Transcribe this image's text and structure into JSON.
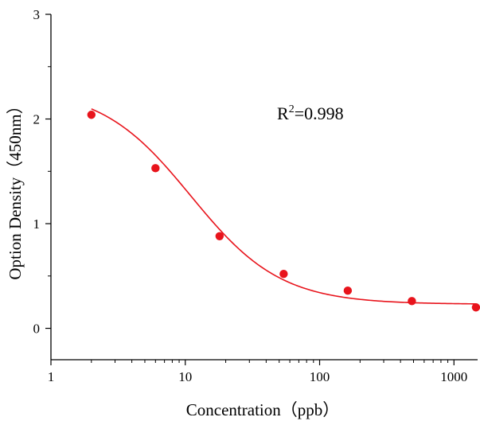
{
  "chart_data": {
    "type": "scatter",
    "title": "",
    "xlabel": "Concentration（ppb）",
    "ylabel": "Option Density（450nm）",
    "x_scale": "log",
    "xlim": [
      1,
      1500
    ],
    "ylim": [
      -0.3,
      3
    ],
    "x_ticks": [
      1,
      10,
      100,
      1000
    ],
    "x_tick_labels": [
      "1",
      "10",
      "100",
      "1000"
    ],
    "y_ticks": [
      0,
      1,
      2,
      3
    ],
    "y_tick_labels": [
      "0",
      "1",
      "2",
      "3"
    ],
    "grid": false,
    "color": "#e8141c",
    "annotation": {
      "base": "R",
      "superscript": "2",
      "text": "=0.998"
    },
    "series": [
      {
        "points": [
          {
            "x": 2,
            "y": 2.04
          },
          {
            "x": 6,
            "y": 1.53
          },
          {
            "x": 18,
            "y": 0.88
          },
          {
            "x": 54,
            "y": 0.52
          },
          {
            "x": 162,
            "y": 0.36
          },
          {
            "x": 486,
            "y": 0.26
          },
          {
            "x": 1458,
            "y": 0.2
          }
        ]
      }
    ],
    "fit": {
      "type": "4PL",
      "top": 2.3,
      "bottom": 0.23,
      "ec50": 11,
      "slope": 1.3
    }
  }
}
